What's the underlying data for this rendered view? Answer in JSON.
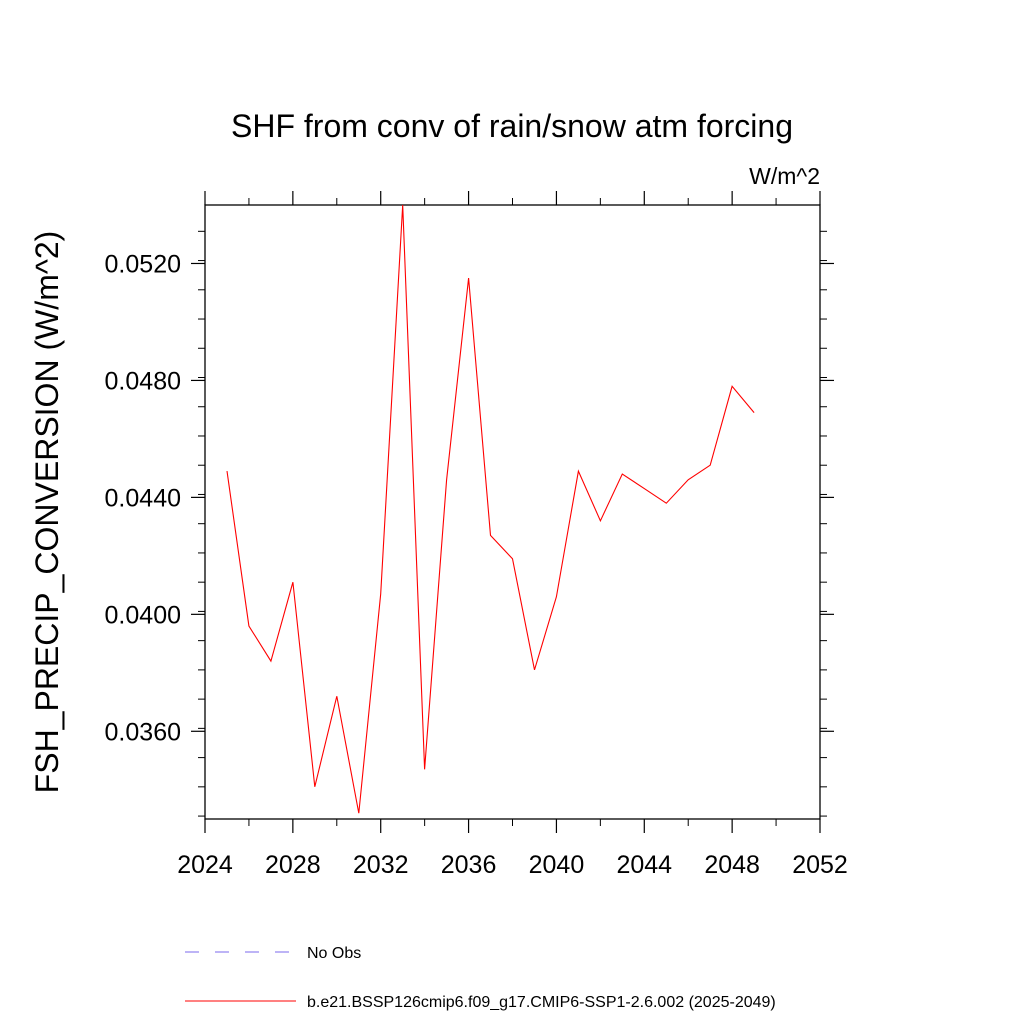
{
  "chart_data": {
    "type": "line",
    "title": "SHF from conv of rain/snow atm forcing",
    "units_label": "W/m^2",
    "xlabel": "",
    "ylabel": "FSH_PRECIP_CONVERSION  (W/m^2)",
    "xlim": [
      2024,
      2052
    ],
    "ylim": [
      0.033,
      0.054
    ],
    "x_ticks": [
      2024,
      2028,
      2032,
      2036,
      2040,
      2044,
      2048,
      2052
    ],
    "y_ticks": [
      "0.0360",
      "0.0400",
      "0.0440",
      "0.0480",
      "0.0520"
    ],
    "series": [
      {
        "name": "b.e21.BSSP126cmip6.f09_g17.CMIP6-SSP1-2.6.002 (2025-2049)",
        "color": "#ff0000",
        "x": [
          2025,
          2026,
          2027,
          2028,
          2029,
          2030,
          2031,
          2032,
          2033,
          2034,
          2035,
          2036,
          2037,
          2038,
          2039,
          2040,
          2041,
          2042,
          2043,
          2044,
          2045,
          2046,
          2047,
          2048,
          2049
        ],
        "y": [
          0.0449,
          0.0396,
          0.0384,
          0.0411,
          0.0341,
          0.0372,
          0.0332,
          0.0407,
          0.054,
          0.0347,
          0.0446,
          0.0515,
          0.0427,
          0.0419,
          0.0381,
          0.0406,
          0.0449,
          0.0432,
          0.0448,
          0.0443,
          0.0438,
          0.0446,
          0.0451,
          0.0478,
          0.0469
        ]
      }
    ],
    "legend": [
      {
        "label": "No Obs",
        "color": "#7b68ee",
        "style": "dashed"
      },
      {
        "label": "b.e21.BSSP126cmip6.f09_g17.CMIP6-SSP1-2.6.002 (2025-2049)",
        "color": "#ff0000",
        "style": "solid"
      }
    ],
    "legend_position": "bottom",
    "grid": false
  }
}
